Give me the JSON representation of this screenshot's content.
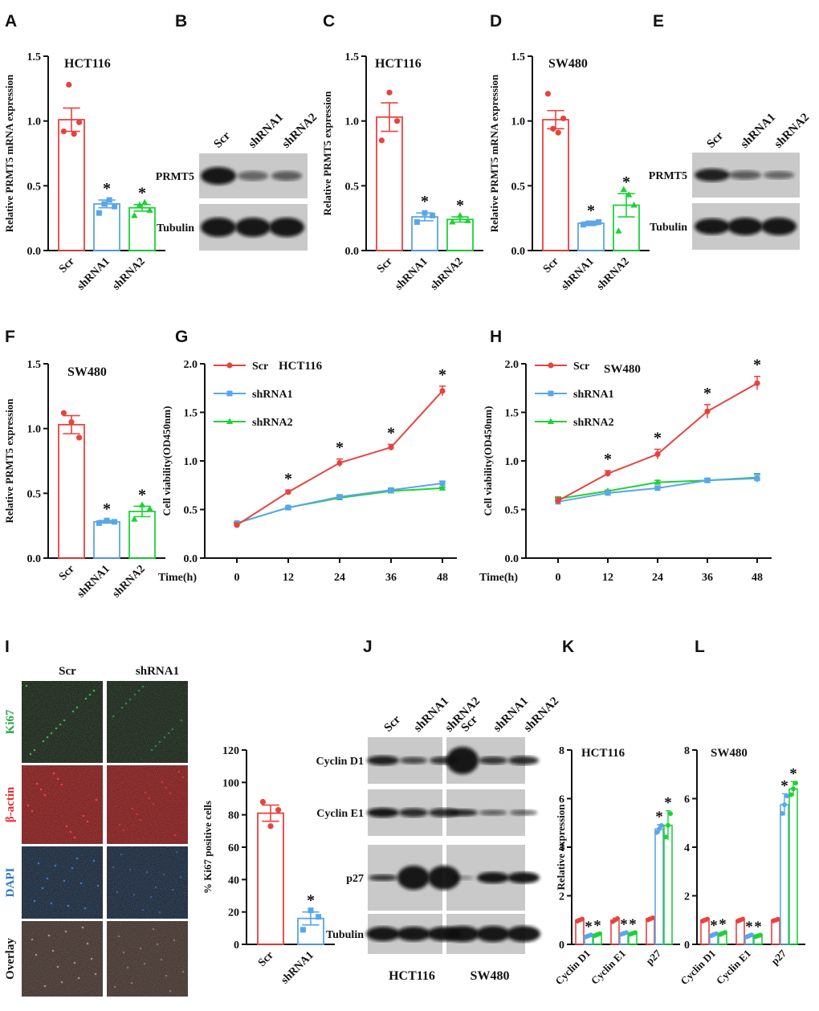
{
  "colors": {
    "red": "#e8423f",
    "blue": "#5aa6ea",
    "green": "#1fd137",
    "axis": "#111111",
    "blot_bg": "#c9c9c9"
  },
  "panels": {
    "A": "A",
    "B": "B",
    "C": "C",
    "D": "D",
    "E": "E",
    "F": "F",
    "G": "G",
    "H": "H",
    "I": "I",
    "J": "J",
    "K": "K",
    "L": "L"
  },
  "chart_data": [
    {
      "panel": "A",
      "type": "bar",
      "title": "HCT116",
      "ylabel": "Relative PRMT5 mRNA expression",
      "ylim": [
        0,
        1.5
      ],
      "yticks": [
        "0.0",
        "0.5",
        "1.0",
        "1.5"
      ],
      "categories": [
        "Scr",
        "shRNA1",
        "shRNA2"
      ],
      "values": [
        1.01,
        0.36,
        0.33
      ],
      "errors": [
        0.09,
        0.03,
        0.025
      ],
      "points": [
        [
          0.92,
          1.28,
          0.9,
          0.99
        ],
        [
          0.29,
          0.36,
          0.39,
          0.34
        ],
        [
          0.27,
          0.35,
          0.37,
          0.31
        ]
      ],
      "stars": [
        "",
        "*",
        "*"
      ]
    },
    {
      "panel": "C",
      "type": "bar",
      "title": "HCT116",
      "ylabel": "Relative PRMT5 expression",
      "ylim": [
        0,
        1.5
      ],
      "yticks": [
        "0.0",
        "0.5",
        "1.0",
        "1.5"
      ],
      "categories": [
        "Scr",
        "shRNA1",
        "shRNA2"
      ],
      "values": [
        1.03,
        0.26,
        0.24
      ],
      "errors": [
        0.11,
        0.03,
        0.02
      ],
      "points": [
        [
          0.85,
          1.22,
          1.0
        ],
        [
          0.22,
          0.29,
          0.27
        ],
        [
          0.22,
          0.27,
          0.23
        ]
      ],
      "stars": [
        "",
        "*",
        "*"
      ]
    },
    {
      "panel": "D",
      "type": "bar",
      "title": "SW480",
      "ylabel": "Relative PRMT5 mRNA expression",
      "ylim": [
        0,
        1.5
      ],
      "yticks": [
        "0.0",
        "0.5",
        "1.0",
        "1.5"
      ],
      "categories": [
        "Scr",
        "shRNA1",
        "shRNA2"
      ],
      "values": [
        1.01,
        0.21,
        0.35
      ],
      "errors": [
        0.07,
        0.01,
        0.09
      ],
      "points": [
        [
          1.21,
          0.94,
          0.91,
          1.02
        ],
        [
          0.2,
          0.21,
          0.21,
          0.22
        ],
        [
          0.15,
          0.47,
          0.43,
          0.35
        ]
      ],
      "stars": [
        "",
        "*",
        "*"
      ]
    },
    {
      "panel": "F",
      "type": "bar",
      "title": "SW480",
      "ylabel": "Relative PRMT5 expression",
      "ylim": [
        0,
        1.5
      ],
      "yticks": [
        "0.0",
        "0.5",
        "1.0",
        "1.5"
      ],
      "categories": [
        "Scr",
        "shRNA1",
        "shRNA2"
      ],
      "values": [
        1.03,
        0.28,
        0.36
      ],
      "errors": [
        0.07,
        0.01,
        0.04
      ],
      "points": [
        [
          1.12,
          1.05,
          0.93
        ],
        [
          0.27,
          0.29,
          0.28
        ],
        [
          0.3,
          0.41,
          0.38
        ]
      ],
      "stars": [
        "",
        "*",
        "*"
      ]
    },
    {
      "panel": "G",
      "type": "line",
      "title": "HCT116",
      "xlabel": "Time(h)",
      "ylabel": "Cell viability(OD450nm)",
      "ylim": [
        0,
        2.0
      ],
      "yticks": [
        "0.0",
        "0.5",
        "1.0",
        "1.5",
        "2.0"
      ],
      "x": [
        0,
        12,
        24,
        36,
        48
      ],
      "xticks": [
        "0",
        "12",
        "24",
        "36",
        "48"
      ],
      "series": [
        {
          "name": "Scr",
          "values": [
            0.34,
            0.68,
            0.98,
            1.14,
            1.72
          ],
          "errors": [
            0.02,
            0.02,
            0.04,
            0.03,
            0.05
          ]
        },
        {
          "name": "shRNA1",
          "values": [
            0.36,
            0.52,
            0.63,
            0.7,
            0.77
          ],
          "errors": [
            0.01,
            0.01,
            0.02,
            0.02,
            0.02
          ]
        },
        {
          "name": "shRNA2",
          "values": [
            0.36,
            0.52,
            0.62,
            0.69,
            0.72
          ],
          "errors": [
            0.01,
            0.01,
            0.02,
            0.02,
            0.01
          ]
        }
      ],
      "stars": [
        "",
        "*",
        "*",
        "*",
        "*"
      ]
    },
    {
      "panel": "H",
      "type": "line",
      "title": "SW480",
      "xlabel": "Time(h)",
      "ylabel": "Cell viability(OD450nm)",
      "ylim": [
        0,
        2.0
      ],
      "yticks": [
        "0.0",
        "0.5",
        "1.0",
        "1.5",
        "2.0"
      ],
      "x": [
        0,
        12,
        24,
        36,
        48
      ],
      "xticks": [
        "0",
        "12",
        "24",
        "36",
        "48"
      ],
      "series": [
        {
          "name": "Scr",
          "values": [
            0.59,
            0.87,
            1.07,
            1.51,
            1.8
          ],
          "errors": [
            0.03,
            0.03,
            0.05,
            0.07,
            0.07
          ]
        },
        {
          "name": "shRNA1",
          "values": [
            0.58,
            0.67,
            0.72,
            0.8,
            0.82
          ],
          "errors": [
            0.02,
            0.01,
            0.02,
            0.02,
            0.04
          ]
        },
        {
          "name": "shRNA2",
          "values": [
            0.61,
            0.69,
            0.78,
            0.8,
            0.83
          ],
          "errors": [
            0.02,
            0.01,
            0.02,
            0.02,
            0.04
          ]
        }
      ],
      "stars": [
        "",
        "*",
        "*",
        "*",
        "*"
      ]
    },
    {
      "panel": "I",
      "type": "bar",
      "title": "",
      "ylabel": "% Ki67 positive cells",
      "ylim": [
        0,
        120
      ],
      "yticks": [
        "0",
        "20",
        "40",
        "60",
        "80",
        "100",
        "120"
      ],
      "categories": [
        "Scr",
        "shRNA1"
      ],
      "values": [
        81,
        16
      ],
      "errors": [
        5,
        4
      ],
      "points": [
        [
          88,
          73,
          83
        ],
        [
          9,
          21,
          17
        ]
      ],
      "stars": [
        "",
        "*"
      ]
    },
    {
      "panel": "K",
      "type": "bar",
      "title": "HCT116",
      "ylabel": "Relative expression",
      "ylim": [
        0,
        8
      ],
      "yticks": [
        "0",
        "2",
        "4",
        "6",
        "8"
      ],
      "categories": [
        "Cyclin D1",
        "Cyclin E1",
        "p27"
      ],
      "series": [
        {
          "name": "Scr",
          "values": [
            1.0,
            1.0,
            1.05
          ],
          "errors": [
            0.05,
            0.08,
            0.05
          ]
        },
        {
          "name": "shRNA1",
          "values": [
            0.35,
            0.45,
            4.75
          ],
          "errors": [
            0.05,
            0.04,
            0.18
          ]
        },
        {
          "name": "shRNA2",
          "values": [
            0.4,
            0.45,
            4.9
          ],
          "errors": [
            0.05,
            0.04,
            0.6
          ]
        }
      ],
      "stars": [
        [
          "",
          "*",
          "*"
        ],
        [
          "",
          "*",
          "*"
        ],
        [
          "",
          "*",
          "*"
        ]
      ]
    },
    {
      "panel": "L",
      "type": "bar",
      "title": "SW480",
      "ylabel": "",
      "ylim": [
        0,
        8
      ],
      "yticks": [
        "0",
        "2",
        "4",
        "6",
        "8"
      ],
      "categories": [
        "Cyclin D1",
        "Cyclin E1",
        "p27"
      ],
      "series": [
        {
          "name": "Scr",
          "values": [
            1.0,
            1.0,
            1.0
          ],
          "errors": [
            0.05,
            0.05,
            0.04
          ]
        },
        {
          "name": "shRNA1",
          "values": [
            0.4,
            0.35,
            5.75
          ],
          "errors": [
            0.05,
            0.05,
            0.45
          ]
        },
        {
          "name": "shRNA2",
          "values": [
            0.45,
            0.35,
            6.4
          ],
          "errors": [
            0.05,
            0.04,
            0.3
          ]
        }
      ],
      "stars": [
        [
          "",
          "*",
          "*"
        ],
        [
          "",
          "*",
          "*"
        ],
        [
          "",
          "*",
          "*"
        ]
      ]
    }
  ],
  "blot_B": {
    "lanes": [
      "Scr",
      "shRNA1",
      "shRNA2"
    ],
    "rows": [
      "PRMT5",
      "Tubulin"
    ]
  },
  "blot_E": {
    "lanes": [
      "Scr",
      "shRNA1",
      "shRNA2"
    ],
    "rows": [
      "PRMT5",
      "Tubulin"
    ]
  },
  "blot_J": {
    "lanes": [
      "Scr",
      "shRNA1",
      "shRNA2",
      "Scr",
      "shRNA1",
      "shRNA2"
    ],
    "rows": [
      "Cyclin D1",
      "Cyclin E1",
      "p27",
      "Tubulin"
    ],
    "groups": [
      "HCT116",
      "SW480"
    ]
  },
  "micro_I": {
    "cols": [
      "Scr",
      "shRNA1"
    ],
    "rows": [
      "Ki67",
      "β-actin",
      "DAPI",
      "Overlay"
    ]
  }
}
